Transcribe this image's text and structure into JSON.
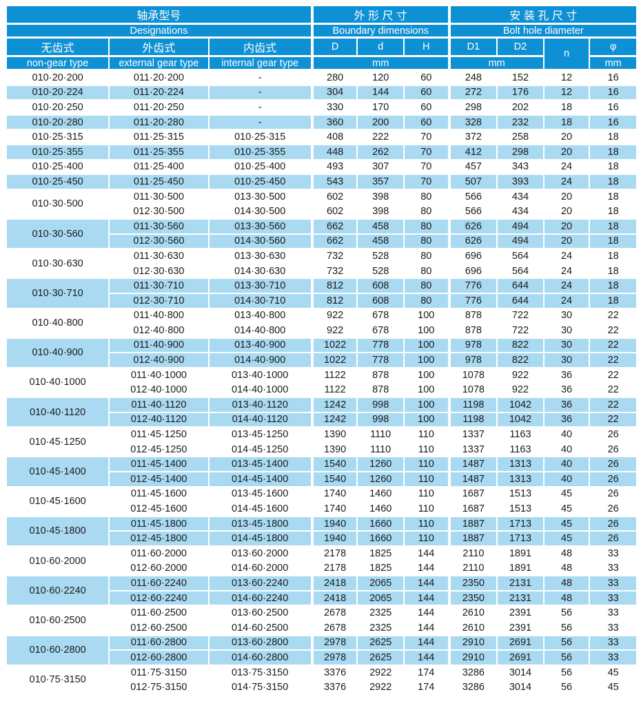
{
  "colors": {
    "header_blue": "#0E90D4",
    "row_blue": "#A9DAF2",
    "text": "#1A1A1A",
    "background": "#FFFFFF"
  },
  "header": {
    "group1_cn": "轴承型号",
    "group1_en": "Designations",
    "group2_cn": "外 形 尺 寸",
    "group2_en": "Boundary dimensions",
    "group3_cn": "安 装 孔 尺 寸",
    "group3_en": "Bolt hole diameter",
    "col_nongear_cn": "无齿式",
    "col_nongear_en": "non-gear type",
    "col_external_cn": "外齿式",
    "col_external_en": "external gear type",
    "col_internal_cn": "内齿式",
    "col_internal_en": "internal gear type",
    "col_D": "D",
    "col_d": "d",
    "col_H": "H",
    "col_D1": "D1",
    "col_D2": "D2",
    "col_n": "n",
    "col_phi": "φ",
    "unit_mm": "mm"
  },
  "table": {
    "column_keys": [
      "external",
      "internal",
      "D",
      "d",
      "H",
      "D1",
      "D2",
      "n",
      "phi"
    ],
    "groups": [
      {
        "non_gear": "010·20·200",
        "shaded": false,
        "rows": [
          [
            "011·20·200",
            "-",
            "280",
            "120",
            "60",
            "248",
            "152",
            "12",
            "16"
          ]
        ]
      },
      {
        "non_gear": "010·20·224",
        "shaded": true,
        "rows": [
          [
            "011·20·224",
            "-",
            "304",
            "144",
            "60",
            "272",
            "176",
            "12",
            "16"
          ]
        ]
      },
      {
        "non_gear": "010·20·250",
        "shaded": false,
        "rows": [
          [
            "011·20·250",
            "-",
            "330",
            "170",
            "60",
            "298",
            "202",
            "18",
            "16"
          ]
        ]
      },
      {
        "non_gear": "010·20·280",
        "shaded": true,
        "rows": [
          [
            "011·20·280",
            "-",
            "360",
            "200",
            "60",
            "328",
            "232",
            "18",
            "16"
          ]
        ]
      },
      {
        "non_gear": "010·25·315",
        "shaded": false,
        "rows": [
          [
            "011·25·315",
            "010·25·315",
            "408",
            "222",
            "70",
            "372",
            "258",
            "20",
            "18"
          ]
        ]
      },
      {
        "non_gear": "010·25·355",
        "shaded": true,
        "rows": [
          [
            "011·25·355",
            "010·25·355",
            "448",
            "262",
            "70",
            "412",
            "298",
            "20",
            "18"
          ]
        ]
      },
      {
        "non_gear": "010·25·400",
        "shaded": false,
        "rows": [
          [
            "011·25·400",
            "010·25·400",
            "493",
            "307",
            "70",
            "457",
            "343",
            "24",
            "18"
          ]
        ]
      },
      {
        "non_gear": "010·25·450",
        "shaded": true,
        "rows": [
          [
            "011·25·450",
            "010·25·450",
            "543",
            "357",
            "70",
            "507",
            "393",
            "24",
            "18"
          ]
        ]
      },
      {
        "non_gear": "010·30·500",
        "shaded": false,
        "rows": [
          [
            "011·30·500",
            "013·30·500",
            "602",
            "398",
            "80",
            "566",
            "434",
            "20",
            "18"
          ],
          [
            "012·30·500",
            "014·30·500",
            "602",
            "398",
            "80",
            "566",
            "434",
            "20",
            "18"
          ]
        ]
      },
      {
        "non_gear": "010·30·560",
        "shaded": true,
        "rows": [
          [
            "011·30·560",
            "013·30·560",
            "662",
            "458",
            "80",
            "626",
            "494",
            "20",
            "18"
          ],
          [
            "012·30·560",
            "014·30·560",
            "662",
            "458",
            "80",
            "626",
            "494",
            "20",
            "18"
          ]
        ]
      },
      {
        "non_gear": "010·30·630",
        "shaded": false,
        "rows": [
          [
            "011·30·630",
            "013·30·630",
            "732",
            "528",
            "80",
            "696",
            "564",
            "24",
            "18"
          ],
          [
            "012·30·630",
            "014·30·630",
            "732",
            "528",
            "80",
            "696",
            "564",
            "24",
            "18"
          ]
        ]
      },
      {
        "non_gear": "010·30·710",
        "shaded": true,
        "rows": [
          [
            "011·30·710",
            "013·30·710",
            "812",
            "608",
            "80",
            "776",
            "644",
            "24",
            "18"
          ],
          [
            "012·30·710",
            "014·30·710",
            "812",
            "608",
            "80",
            "776",
            "644",
            "24",
            "18"
          ]
        ]
      },
      {
        "non_gear": "010·40·800",
        "shaded": false,
        "rows": [
          [
            "011·40·800",
            "013·40·800",
            "922",
            "678",
            "100",
            "878",
            "722",
            "30",
            "22"
          ],
          [
            "012·40·800",
            "014·40·800",
            "922",
            "678",
            "100",
            "878",
            "722",
            "30",
            "22"
          ]
        ]
      },
      {
        "non_gear": "010·40·900",
        "shaded": true,
        "rows": [
          [
            "011·40·900",
            "013·40·900",
            "1022",
            "778",
            "100",
            "978",
            "822",
            "30",
            "22"
          ],
          [
            "012·40·900",
            "014·40·900",
            "1022",
            "778",
            "100",
            "978",
            "822",
            "30",
            "22"
          ]
        ]
      },
      {
        "non_gear": "010·40·1000",
        "shaded": false,
        "rows": [
          [
            "011·40·1000",
            "013·40·1000",
            "1122",
            "878",
            "100",
            "1078",
            "922",
            "36",
            "22"
          ],
          [
            "012·40·1000",
            "014·40·1000",
            "1122",
            "878",
            "100",
            "1078",
            "922",
            "36",
            "22"
          ]
        ]
      },
      {
        "non_gear": "010·40·1120",
        "shaded": true,
        "rows": [
          [
            "011·40·1120",
            "013·40·1120",
            "1242",
            "998",
            "100",
            "1198",
            "1042",
            "36",
            "22"
          ],
          [
            "012·40·1120",
            "014·40·1120",
            "1242",
            "998",
            "100",
            "1198",
            "1042",
            "36",
            "22"
          ]
        ]
      },
      {
        "non_gear": "010·45·1250",
        "shaded": false,
        "rows": [
          [
            "011·45·1250",
            "013·45·1250",
            "1390",
            "1110",
            "110",
            "1337",
            "1163",
            "40",
            "26"
          ],
          [
            "012·45·1250",
            "014·45·1250",
            "1390",
            "1110",
            "110",
            "1337",
            "1163",
            "40",
            "26"
          ]
        ]
      },
      {
        "non_gear": "010·45·1400",
        "shaded": true,
        "rows": [
          [
            "011·45·1400",
            "013·45·1400",
            "1540",
            "1260",
            "110",
            "1487",
            "1313",
            "40",
            "26"
          ],
          [
            "012·45·1400",
            "014·45·1400",
            "1540",
            "1260",
            "110",
            "1487",
            "1313",
            "40",
            "26"
          ]
        ]
      },
      {
        "non_gear": "010·45·1600",
        "shaded": false,
        "rows": [
          [
            "011·45·1600",
            "013·45·1600",
            "1740",
            "1460",
            "110",
            "1687",
            "1513",
            "45",
            "26"
          ],
          [
            "012·45·1600",
            "014·45·1600",
            "1740",
            "1460",
            "110",
            "1687",
            "1513",
            "45",
            "26"
          ]
        ]
      },
      {
        "non_gear": "010·45·1800",
        "shaded": true,
        "rows": [
          [
            "011·45·1800",
            "013·45·1800",
            "1940",
            "1660",
            "110",
            "1887",
            "1713",
            "45",
            "26"
          ],
          [
            "012·45·1800",
            "014·45·1800",
            "1940",
            "1660",
            "110",
            "1887",
            "1713",
            "45",
            "26"
          ]
        ]
      },
      {
        "non_gear": "010·60·2000",
        "shaded": false,
        "rows": [
          [
            "011·60·2000",
            "013·60·2000",
            "2178",
            "1825",
            "144",
            "2110",
            "1891",
            "48",
            "33"
          ],
          [
            "012·60·2000",
            "014·60·2000",
            "2178",
            "1825",
            "144",
            "2110",
            "1891",
            "48",
            "33"
          ]
        ]
      },
      {
        "non_gear": "010·60·2240",
        "shaded": true,
        "rows": [
          [
            "011·60·2240",
            "013·60·2240",
            "2418",
            "2065",
            "144",
            "2350",
            "2131",
            "48",
            "33"
          ],
          [
            "012·60·2240",
            "014·60·2240",
            "2418",
            "2065",
            "144",
            "2350",
            "2131",
            "48",
            "33"
          ]
        ]
      },
      {
        "non_gear": "010·60·2500",
        "shaded": false,
        "rows": [
          [
            "011·60·2500",
            "013·60·2500",
            "2678",
            "2325",
            "144",
            "2610",
            "2391",
            "56",
            "33"
          ],
          [
            "012·60·2500",
            "014·60·2500",
            "2678",
            "2325",
            "144",
            "2610",
            "2391",
            "56",
            "33"
          ]
        ]
      },
      {
        "non_gear": "010·60·2800",
        "shaded": true,
        "rows": [
          [
            "011·60·2800",
            "013·60·2800",
            "2978",
            "2625",
            "144",
            "2910",
            "2691",
            "56",
            "33"
          ],
          [
            "012·60·2800",
            "014·60·2800",
            "2978",
            "2625",
            "144",
            "2910",
            "2691",
            "56",
            "33"
          ]
        ]
      },
      {
        "non_gear": "010·75·3150",
        "shaded": false,
        "rows": [
          [
            "011·75·3150",
            "013·75·3150",
            "3376",
            "2922",
            "174",
            "3286",
            "3014",
            "56",
            "45"
          ],
          [
            "012·75·3150",
            "014·75·3150",
            "3376",
            "2922",
            "174",
            "3286",
            "3014",
            "56",
            "45"
          ]
        ]
      }
    ]
  }
}
